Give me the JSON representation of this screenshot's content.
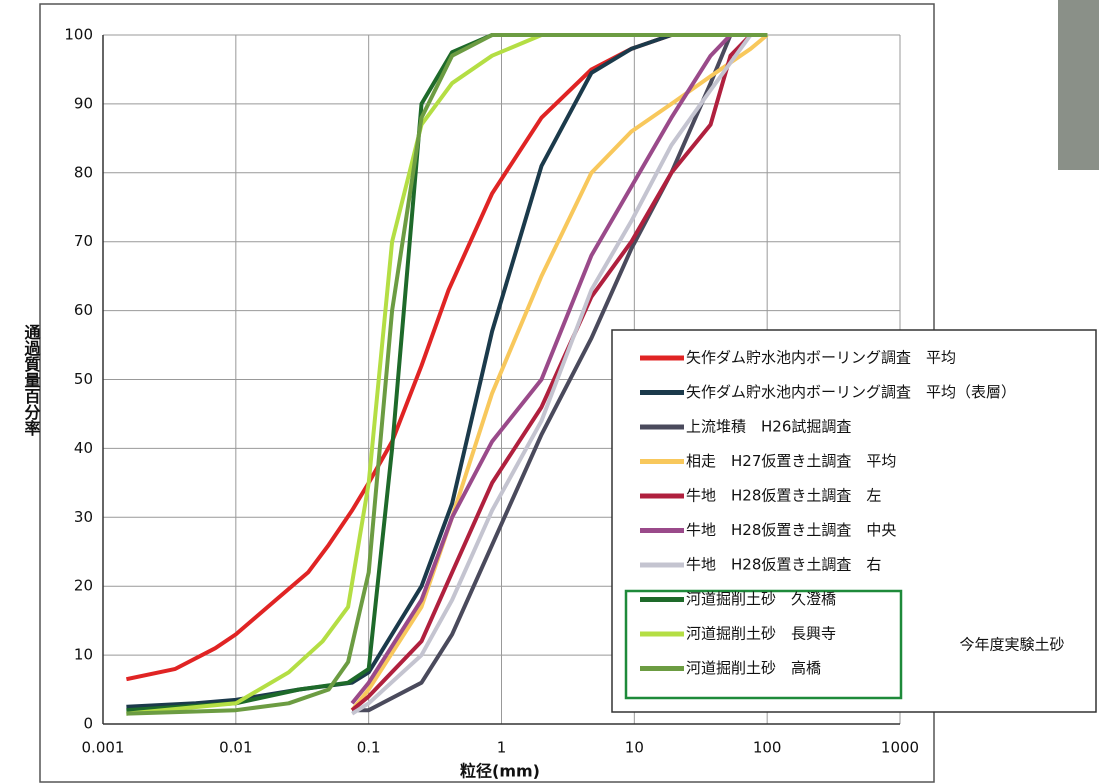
{
  "chart_data": {
    "type": "line",
    "x_label": "粒径(mm)",
    "y_label": "通過質量百分率",
    "log_x": true,
    "grid": true,
    "xlim": [
      0.001,
      1000
    ],
    "ylim": [
      0,
      100
    ],
    "xticks": [
      0.001,
      0.01,
      0.1,
      1,
      10,
      100,
      1000
    ],
    "yticks": [
      0,
      10,
      20,
      30,
      40,
      50,
      60,
      70,
      80,
      90,
      100
    ],
    "annotation": "今年度実験土砂",
    "series": [
      {
        "name": "矢作ダム貯水池内ボーリング調査　平均",
        "color": "#e02424",
        "x": [
          0.0015,
          0.0035,
          0.007,
          0.01,
          0.02,
          0.035,
          0.05,
          0.075,
          0.1,
          0.15,
          0.25,
          0.4,
          0.85,
          2,
          4.75,
          9.5,
          19,
          37.5,
          100
        ],
        "values": [
          6.5,
          8,
          11,
          13,
          18,
          22,
          26,
          31,
          35,
          41,
          52,
          63,
          77,
          88,
          95,
          98,
          100,
          100,
          100
        ]
      },
      {
        "name": "矢作ダム貯水池内ボーリング調査　平均（表層）",
        "color": "#1b3a4b",
        "x": [
          0.0015,
          0.005,
          0.01,
          0.03,
          0.075,
          0.1,
          0.25,
          0.425,
          0.85,
          2,
          4.75,
          9.5,
          19,
          100
        ],
        "values": [
          2.5,
          3,
          3.5,
          5,
          6,
          7.5,
          20,
          32,
          57,
          81,
          94.5,
          98,
          100,
          100
        ]
      },
      {
        "name": "上流堆積　H26試掘調査",
        "color": "#4a4a5c",
        "x": [
          0.075,
          0.1,
          0.25,
          0.425,
          0.85,
          2,
          4.75,
          9.5,
          19,
          37.5,
          53
        ],
        "values": [
          2,
          2,
          6,
          13,
          26,
          42,
          56,
          69,
          80,
          93,
          100
        ]
      },
      {
        "name": "相走　H27仮置き土調査　平均",
        "color": "#f8c85c",
        "x": [
          0.075,
          0.1,
          0.25,
          0.425,
          0.85,
          2,
          4.75,
          9.5,
          19,
          37.5,
          75,
          100
        ],
        "values": [
          2,
          5,
          17,
          30,
          48,
          65,
          80,
          86,
          90,
          94,
          98,
          100
        ]
      },
      {
        "name": "牛地　H28仮置き土調査　左",
        "color": "#b0203e",
        "x": [
          0.075,
          0.1,
          0.25,
          0.425,
          0.85,
          2,
          4.75,
          9.5,
          19,
          37.5,
          53,
          75
        ],
        "values": [
          2,
          4,
          12,
          22,
          35,
          46,
          62,
          70,
          80,
          87,
          97,
          100
        ]
      },
      {
        "name": "牛地　H28仮置き土調査　中央",
        "color": "#9a4a8a",
        "x": [
          0.075,
          0.1,
          0.25,
          0.425,
          0.85,
          2,
          4.75,
          9.5,
          19,
          37.5,
          53
        ],
        "values": [
          3,
          6,
          18,
          30,
          41,
          50,
          68,
          78,
          88,
          97,
          100
        ]
      },
      {
        "name": "牛地　H28仮置き土調査　右",
        "color": "#c4c4d0",
        "x": [
          0.075,
          0.1,
          0.25,
          0.425,
          0.85,
          2,
          4.75,
          9.5,
          19,
          37.5,
          75
        ],
        "values": [
          1.5,
          3,
          10,
          18,
          31,
          44,
          63,
          73,
          84,
          92,
          100
        ]
      },
      {
        "name": "河道掘削土砂　久澄橋",
        "color": "#1e6a2a",
        "x": [
          0.0015,
          0.01,
          0.03,
          0.07,
          0.1,
          0.15,
          0.25,
          0.425,
          0.85,
          100
        ],
        "values": [
          2,
          3,
          5,
          6,
          8,
          40,
          90,
          97.5,
          100,
          100
        ]
      },
      {
        "name": "河道掘削土砂　長興寺",
        "color": "#b4de44",
        "x": [
          0.0015,
          0.01,
          0.025,
          0.045,
          0.07,
          0.1,
          0.15,
          0.25,
          0.425,
          0.85,
          2,
          100
        ],
        "values": [
          1.5,
          3,
          7.5,
          12,
          17,
          35,
          70,
          87,
          93,
          97,
          100,
          100
        ]
      },
      {
        "name": "河道掘削土砂　高橋",
        "color": "#6c9c42",
        "x": [
          0.0015,
          0.01,
          0.025,
          0.05,
          0.07,
          0.1,
          0.15,
          0.25,
          0.425,
          0.85,
          2,
          100
        ],
        "values": [
          1.5,
          2,
          3,
          5,
          9,
          22,
          60,
          88,
          97,
          100,
          100,
          100
        ]
      }
    ]
  }
}
